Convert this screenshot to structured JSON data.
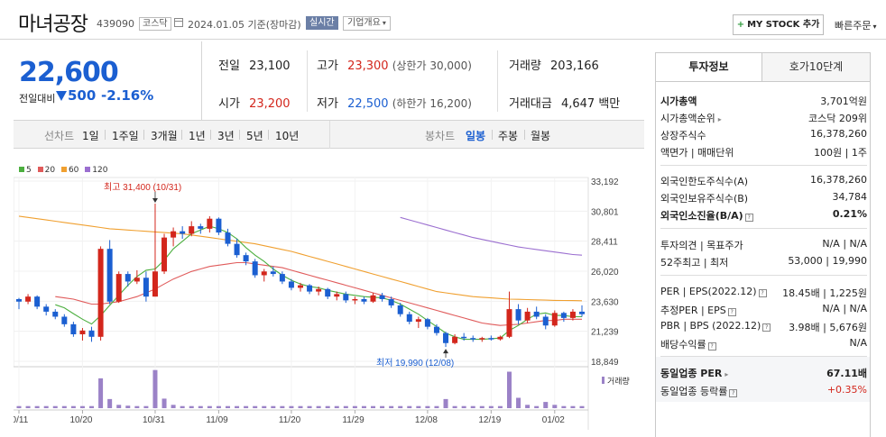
{
  "header": {
    "name": "마녀공장",
    "code": "439090",
    "market": "코스닥",
    "date": "2024.01.05 기준(장마감)",
    "realtime": "실시간",
    "corp_info": "기업개요",
    "mystock": "MY STOCK 추가",
    "quick_order": "빠른주문"
  },
  "price": {
    "current": "22,600",
    "cmp_label": "전일대비",
    "cmp_value": "500",
    "cmp_percent": "-2.16%"
  },
  "stats": {
    "prev_label": "전일",
    "prev": "23,100",
    "high_label": "고가",
    "high": "23,300",
    "high_limit": "(상한가 30,000)",
    "volume_label": "거래량",
    "volume": "203,166",
    "open_label": "시가",
    "open": "23,200",
    "low_label": "저가",
    "low": "22,500",
    "low_limit": "(하한가 16,200)",
    "value_label": "거래대금",
    "value": "4,647",
    "value_unit": "백만"
  },
  "period_tabs": {
    "line_label": "선차트",
    "line": [
      "1일",
      "1주일",
      "3개월",
      "1년",
      "3년",
      "5년",
      "10년"
    ],
    "candle_label": "봉차트",
    "candle": [
      "일봉",
      "주봉",
      "월봉"
    ],
    "active": "일봉"
  },
  "right_panel": {
    "tab_on": "투자정보",
    "tab_off": "호가10단계",
    "rows": [
      {
        "k": "시가총액",
        "v": "3,701억원"
      },
      {
        "k": "시가총액순위",
        "v": "코스닥 209위"
      },
      {
        "k": "상장주식수",
        "v": "16,378,260"
      },
      {
        "k": "액면가 | 매매단위",
        "v": "100원 | 1주"
      },
      {
        "k": "외국인한도주식수(A)",
        "v": "16,378,260"
      },
      {
        "k": "외국인보유주식수(B)",
        "v": "34,784"
      },
      {
        "k": "외국인소진율(B/A)",
        "v": "0.21%"
      },
      {
        "k": "투자의견 | 목표주가",
        "v": "N/A | N/A"
      },
      {
        "k": "52주최고 | 최저",
        "v": "53,000 | 19,990"
      },
      {
        "k": "PER | EPS(2022.12)",
        "v": "18.45배 | 1,225원"
      },
      {
        "k": "추정PER | EPS",
        "v": "N/A | N/A"
      },
      {
        "k": "PBR | BPS (2022.12)",
        "v": "3.98배 | 5,676원"
      },
      {
        "k": "배당수익률",
        "v": "N/A"
      },
      {
        "k": "동일업종 PER",
        "v": "67.11배"
      },
      {
        "k": "동일업종 등락률",
        "v": "+0.35%"
      }
    ]
  },
  "chart_data": {
    "type": "candlestick",
    "legend": [
      "5",
      "20",
      "60",
      "120"
    ],
    "colors": {
      "up": "#d3261c",
      "down": "#1b5fd1",
      "ma5": "#4caf3f",
      "ma20": "#e05b5b",
      "ma60": "#f0a030",
      "ma120": "#9b6fd0",
      "volume": "#9b82c7"
    },
    "y_ticks": [
      "33,192",
      "30,801",
      "28,411",
      "26,020",
      "23,630",
      "21,239",
      "18,849"
    ],
    "y_range": [
      18849,
      33192
    ],
    "x_ticks": [
      "10/11",
      "10/20",
      "10/31",
      "11/09",
      "11/20",
      "11/29",
      "12/08",
      "12/19",
      "01/02"
    ],
    "high_note": "최고 31,400 (10/31)",
    "low_note": "최저 19,990 (12/08)",
    "volume_label": "거래량",
    "candles": [
      [
        23800,
        23900,
        23000,
        23600
      ],
      [
        23600,
        24200,
        23400,
        24000
      ],
      [
        24000,
        24100,
        23000,
        23200
      ],
      [
        23200,
        23400,
        22500,
        22800
      ],
      [
        22800,
        23000,
        22200,
        22400
      ],
      [
        22400,
        22600,
        21600,
        21800
      ],
      [
        21800,
        22000,
        20800,
        21000
      ],
      [
        21000,
        21500,
        20500,
        21300
      ],
      [
        21300,
        21600,
        20400,
        20800
      ],
      [
        20800,
        28000,
        20500,
        27800
      ],
      [
        27800,
        28500,
        23400,
        23600
      ],
      [
        23600,
        26000,
        23500,
        25800
      ],
      [
        25800,
        26000,
        24800,
        25200
      ],
      [
        25200,
        26100,
        25000,
        25500
      ],
      [
        25500,
        26000,
        23600,
        24000
      ],
      [
        24000,
        31400,
        24000,
        26000
      ],
      [
        26000,
        29000,
        25800,
        28700
      ],
      [
        28700,
        29500,
        28000,
        29200
      ],
      [
        29200,
        29600,
        28600,
        29000
      ],
      [
        29000,
        30000,
        28800,
        29600
      ],
      [
        29600,
        29800,
        29000,
        29400
      ],
      [
        29400,
        30400,
        29100,
        30200
      ],
      [
        30200,
        30300,
        28900,
        29100
      ],
      [
        29100,
        29400,
        28000,
        28200
      ],
      [
        28200,
        28600,
        27100,
        27300
      ],
      [
        27300,
        27500,
        26500,
        26800
      ],
      [
        26800,
        27000,
        25500,
        25700
      ],
      [
        25700,
        26200,
        25200,
        26000
      ],
      [
        26000,
        26400,
        25600,
        25800
      ],
      [
        25800,
        26000,
        25000,
        25200
      ],
      [
        25200,
        25400,
        24500,
        24700
      ],
      [
        24700,
        25100,
        24400,
        24900
      ],
      [
        24900,
        25000,
        24200,
        24400
      ],
      [
        24400,
        24800,
        24100,
        24600
      ],
      [
        24600,
        24700,
        23800,
        24000
      ],
      [
        24000,
        24400,
        23700,
        24200
      ],
      [
        24200,
        24400,
        23500,
        23700
      ],
      [
        23700,
        24000,
        23400,
        23800
      ],
      [
        23800,
        24000,
        23400,
        23600
      ],
      [
        23600,
        24300,
        23500,
        24100
      ],
      [
        24100,
        24300,
        23600,
        23800
      ],
      [
        23800,
        24000,
        23100,
        23300
      ],
      [
        23300,
        23500,
        22400,
        22600
      ],
      [
        22600,
        22800,
        21800,
        22000
      ],
      [
        22000,
        22400,
        21500,
        22200
      ],
      [
        22200,
        22300,
        21400,
        21600
      ],
      [
        21600,
        21800,
        20900,
        21100
      ],
      [
        21100,
        21200,
        19990,
        20300
      ],
      [
        20300,
        21000,
        20200,
        20800
      ],
      [
        20800,
        21100,
        20500,
        20700
      ],
      [
        20700,
        20900,
        20400,
        20600
      ],
      [
        20600,
        20800,
        20400,
        20700
      ],
      [
        20700,
        20900,
        20500,
        20600
      ],
      [
        20600,
        20900,
        20500,
        20800
      ],
      [
        20800,
        24400,
        20700,
        23000
      ],
      [
        23000,
        23400,
        21800,
        22100
      ],
      [
        22100,
        23100,
        21900,
        22800
      ],
      [
        22800,
        23200,
        22200,
        22400
      ],
      [
        22400,
        22600,
        21400,
        21700
      ],
      [
        21700,
        22900,
        21600,
        22700
      ],
      [
        22700,
        22800,
        22000,
        22300
      ],
      [
        22300,
        23000,
        22100,
        22800
      ],
      [
        22800,
        23300,
        22400,
        22600
      ]
    ],
    "volume": [
      0.05,
      0.05,
      0.05,
      0.05,
      0.05,
      0.05,
      0.05,
      0.05,
      0.05,
      0.72,
      0.22,
      0.08,
      0.06,
      0.05,
      0.05,
      0.92,
      0.23,
      0.08,
      0.05,
      0.05,
      0.05,
      0.05,
      0.05,
      0.05,
      0.05,
      0.05,
      0.05,
      0.05,
      0.05,
      0.05,
      0.05,
      0.05,
      0.05,
      0.05,
      0.05,
      0.05,
      0.05,
      0.05,
      0.05,
      0.05,
      0.05,
      0.05,
      0.05,
      0.05,
      0.05,
      0.05,
      0.05,
      0.22,
      0.05,
      0.05,
      0.05,
      0.05,
      0.05,
      0.05,
      0.88,
      0.25,
      0.08,
      0.05,
      0.15,
      0.08,
      0.05,
      0.05,
      0.05
    ],
    "ma5": [
      null,
      null,
      null,
      null,
      23350,
      23110,
      22640,
      22200,
      21820,
      22500,
      23300,
      24100,
      24900,
      25600,
      26100,
      26200,
      26900,
      27800,
      28400,
      29000,
      29300,
      29600,
      29400,
      29100,
      28600,
      27900,
      27300,
      26800,
      26200,
      25700,
      25300,
      25000,
      24800,
      24700,
      24500,
      24350,
      24200,
      24100,
      24000,
      23950,
      23900,
      23700,
      23400,
      23000,
      22600,
      22100,
      21600,
      21100,
      20800,
      20600,
      20600,
      20600,
      20650,
      20700,
      21300,
      21700,
      22200,
      22600,
      22700,
      22500,
      22500,
      22400,
      22400
    ],
    "ma20": [
      null,
      null,
      null,
      null,
      24000,
      23900,
      23800,
      23600,
      23400,
      23400,
      23500,
      23600,
      23800,
      24000,
      24300,
      24600,
      25000,
      25400,
      25700,
      26000,
      26200,
      26400,
      26500,
      26600,
      26700,
      26700,
      26600,
      26500,
      26400,
      26300,
      26100,
      25900,
      25700,
      25500,
      25300,
      25100,
      24900,
      24700,
      24500,
      24300,
      24100,
      23900,
      23700,
      23500,
      23300,
      23100,
      22900,
      22700,
      22500,
      22300,
      22100,
      21900,
      21800,
      21700,
      21750,
      21800,
      21900,
      22000,
      22100,
      22100,
      22200,
      22200,
      22200
    ],
    "ma60": [
      30400,
      30300,
      30200,
      30100,
      30000,
      29900,
      29800,
      29700,
      29600,
      29500,
      29400,
      29350,
      29300,
      29250,
      29200,
      29150,
      29100,
      29050,
      29000,
      28900,
      28800,
      28700,
      28600,
      28500,
      28400,
      28300,
      28200,
      28050,
      27900,
      27750,
      27600,
      27400,
      27200,
      27000,
      26800,
      26600,
      26400,
      26200,
      26000,
      25800,
      25600,
      25400,
      25200,
      25000,
      24800,
      24600,
      24400,
      24300,
      24200,
      24100,
      24000,
      23950,
      23900,
      23850,
      23800,
      23780,
      23760,
      23740,
      23720,
      23700,
      23690,
      23680,
      23670
    ],
    "ma120": [
      null,
      null,
      null,
      null,
      null,
      null,
      null,
      null,
      null,
      null,
      null,
      null,
      null,
      null,
      null,
      null,
      null,
      null,
      null,
      null,
      null,
      null,
      null,
      null,
      null,
      null,
      null,
      null,
      null,
      null,
      null,
      null,
      null,
      null,
      null,
      null,
      null,
      null,
      null,
      null,
      null,
      null,
      30300,
      30100,
      29900,
      29700,
      29500,
      29300,
      29100,
      28900,
      28700,
      28550,
      28400,
      28250,
      28100,
      27950,
      27850,
      27750,
      27650,
      27550,
      27450,
      27350,
      27300
    ]
  }
}
